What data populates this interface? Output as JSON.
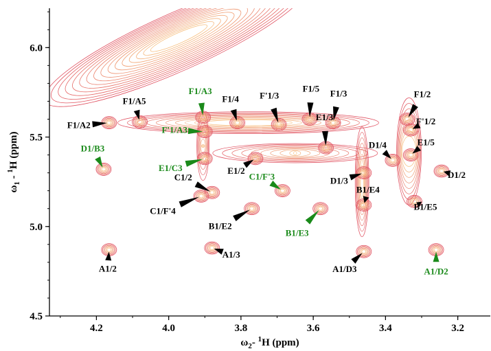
{
  "chart_data": {
    "type": "scatter",
    "title": "",
    "xlabel": {
      "prefix": "ω",
      "sub": "2",
      "mid": "- ",
      "sup": "1",
      "nuc": "H",
      "unit": " (ppm)"
    },
    "ylabel": {
      "prefix": "ω",
      "sub": "1",
      "mid": " - ",
      "sup": "1",
      "nuc": "H",
      "unit": " (ppm)"
    },
    "xlim": [
      4.33,
      3.11
    ],
    "ylim": [
      4.5,
      6.22
    ],
    "x_ticks": [
      4.2,
      4.0,
      3.8,
      3.6,
      3.4,
      3.2
    ],
    "x_tick_labels": [
      "4.2",
      "4.0",
      "3.8",
      "3.6",
      "3.4",
      "3.2"
    ],
    "y_ticks": [
      4.5,
      5.0,
      5.5,
      6.0
    ],
    "y_tick_labels": [
      "4.5",
      "5.0",
      "5.5",
      "6.0"
    ],
    "colors": {
      "contour_outer": "#e05060",
      "contour_inner": "#f7c080",
      "label_black": "#000000",
      "label_green": "#1a8a1a"
    },
    "cross_peaks": [
      {
        "label": "F1/A2",
        "x": 4.165,
        "y": 5.58,
        "color": "black"
      },
      {
        "label": "F1/A5",
        "x": 4.08,
        "y": 5.585,
        "color": "black"
      },
      {
        "label": "D1/B3",
        "x": 4.18,
        "y": 5.32,
        "color": "green"
      },
      {
        "label": "F1/A3",
        "x": 3.905,
        "y": 5.61,
        "color": "green"
      },
      {
        "label": "F'1/A3",
        "x": 3.9,
        "y": 5.53,
        "color": "green"
      },
      {
        "label": "E1/C3",
        "x": 3.9,
        "y": 5.38,
        "color": "green"
      },
      {
        "label": "C1/2",
        "x": 3.88,
        "y": 5.19,
        "color": "black"
      },
      {
        "label": "C1/F'4",
        "x": 3.91,
        "y": 5.17,
        "color": "black"
      },
      {
        "label": "F1/4",
        "x": 3.81,
        "y": 5.58,
        "color": "black"
      },
      {
        "label": "E1/2",
        "x": 3.76,
        "y": 5.38,
        "color": "black"
      },
      {
        "label": "B1/E2",
        "x": 3.77,
        "y": 5.1,
        "color": "black"
      },
      {
        "label": "F'1/3",
        "x": 3.695,
        "y": 5.57,
        "color": "black"
      },
      {
        "label": "C1/F'3",
        "x": 3.685,
        "y": 5.2,
        "color": "green"
      },
      {
        "label": "F1/5",
        "x": 3.61,
        "y": 5.6,
        "color": "black"
      },
      {
        "label": "F1/3",
        "x": 3.545,
        "y": 5.58,
        "color": "black"
      },
      {
        "label": "E1/3",
        "x": 3.565,
        "y": 5.44,
        "color": "black"
      },
      {
        "label": "B1/E3",
        "x": 3.58,
        "y": 5.1,
        "color": "green"
      },
      {
        "label": "D1/3",
        "x": 3.46,
        "y": 5.3,
        "color": "black"
      },
      {
        "label": "B1/E4",
        "x": 3.46,
        "y": 5.12,
        "color": "black"
      },
      {
        "label": "A1/D3",
        "x": 3.46,
        "y": 4.86,
        "color": "black"
      },
      {
        "label": "D1/4",
        "x": 3.38,
        "y": 5.37,
        "color": "black"
      },
      {
        "label": "F1/2",
        "x": 3.34,
        "y": 5.6,
        "color": "black"
      },
      {
        "label": "F'1/2",
        "x": 3.33,
        "y": 5.54,
        "color": "black"
      },
      {
        "label": "E1/5",
        "x": 3.33,
        "y": 5.4,
        "color": "black"
      },
      {
        "label": "B1/E5",
        "x": 3.32,
        "y": 5.14,
        "color": "black"
      },
      {
        "label": "D1/2",
        "x": 3.245,
        "y": 5.31,
        "color": "black"
      },
      {
        "label": "A1/D2",
        "x": 3.26,
        "y": 4.87,
        "color": "green"
      },
      {
        "label": "A1/2",
        "x": 4.165,
        "y": 4.87,
        "color": "black"
      },
      {
        "label": "A1/3",
        "x": 3.88,
        "y": 4.88,
        "color": "black"
      }
    ]
  }
}
